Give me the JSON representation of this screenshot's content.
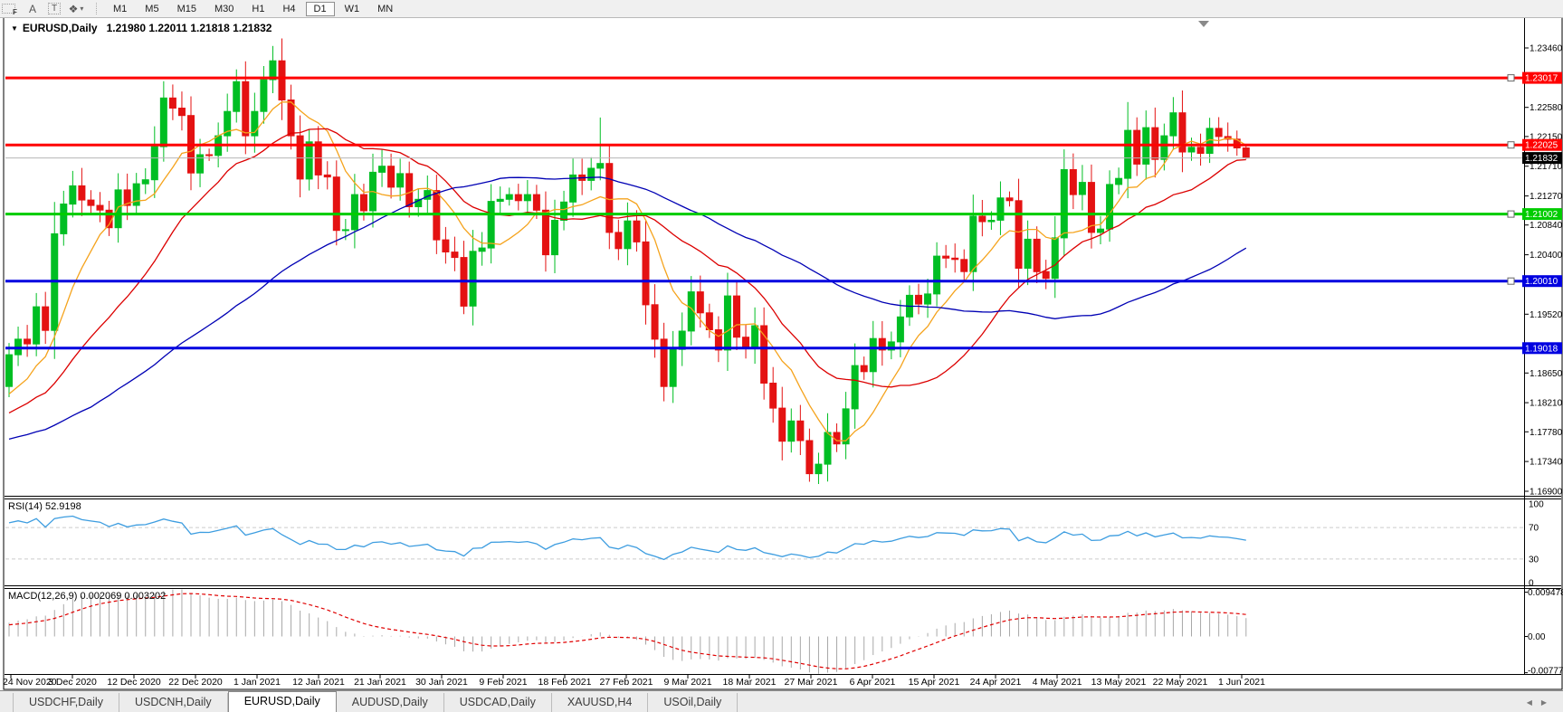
{
  "toolbar": {
    "tools": {
      "fib_glyph": "F",
      "text_glyph": "A",
      "label_glyph": "T",
      "shapes_glyph": "❖",
      "caret_glyph": "▾"
    },
    "timeframes": [
      "M1",
      "M5",
      "M15",
      "M30",
      "H1",
      "H4",
      "D1",
      "W1",
      "MN"
    ],
    "active_timeframe": "D1"
  },
  "chart": {
    "symbol_label": "EURUSD,Daily",
    "ohlc_text": "1.21980 1.22011 1.21818 1.21832",
    "caret_glyph": "▼"
  },
  "panels": {
    "rsi_label": "RSI(14) 52.9198",
    "macd_label": "MACD(12,26,9) 0.002069 0.003202"
  },
  "colors": {
    "bull": "#00be23",
    "bear": "#e41212",
    "sr_red": "#ff0000",
    "sr_green": "#00cc00",
    "sr_blue": "#0000e0",
    "ma_fast": "#f5a31c",
    "ma_mid": "#dc0000",
    "ma_slow": "#0000b4",
    "rsi_line": "#3d9de0",
    "rsi_level": "#cccccc",
    "macd_hist": "#a8a8a8",
    "macd_signal": "#e00000",
    "price_line": "#b4b4b4",
    "price_badge": "#000000",
    "shift_marker": "#8a8a8a"
  },
  "chart_data": {
    "type": "candlestick",
    "symbol": "EURUSD",
    "timeframe": "Daily",
    "last_candle": {
      "open": 1.2198,
      "high": 1.22011,
      "low": 1.21818,
      "close": 1.21832
    },
    "lead_in_closes": [
      1.1655,
      1.1672,
      1.166,
      1.1688,
      1.1702,
      1.1695,
      1.1718,
      1.1706,
      1.1724,
      1.174,
      1.1731,
      1.1752,
      1.1744,
      1.1762,
      1.1778,
      1.177,
      1.1789,
      1.1781,
      1.1762,
      1.1745,
      1.1758,
      1.1772,
      1.1766,
      1.1784,
      1.1798,
      1.179,
      1.1777,
      1.1768,
      1.1782,
      1.1795,
      1.1805,
      1.1798,
      1.1812,
      1.1825,
      1.1818,
      1.1808,
      1.182,
      1.1835,
      1.1828,
      1.1845
    ],
    "closes": [
      1.1892,
      1.1915,
      1.1908,
      1.1963,
      1.1928,
      1.2071,
      1.2115,
      1.2142,
      1.2121,
      1.2113,
      1.2106,
      1.208,
      1.2136,
      1.2113,
      1.2145,
      1.2151,
      1.22,
      1.2272,
      1.2257,
      1.2246,
      1.2161,
      1.2188,
      1.2187,
      1.2216,
      1.2252,
      1.2296,
      1.2216,
      1.2252,
      1.2299,
      1.2327,
      1.2269,
      1.2216,
      1.2152,
      1.2207,
      1.2158,
      1.2155,
      1.2076,
      1.2077,
      1.2129,
      1.2105,
      1.2162,
      1.2171,
      1.214,
      1.216,
      1.2111,
      1.2122,
      1.2135,
      1.2062,
      1.2044,
      1.2036,
      1.1964,
      1.2045,
      1.205,
      1.2119,
      1.2122,
      1.2129,
      1.212,
      1.2129,
      1.2106,
      1.204,
      1.2091,
      1.2118,
      1.2158,
      1.215,
      1.2168,
      1.2175,
      1.2073,
      1.2049,
      1.209,
      1.2059,
      1.1966,
      1.1915,
      1.1845,
      1.19,
      1.1927,
      1.1985,
      1.1954,
      1.1929,
      1.1899,
      1.1979,
      1.1918,
      1.1903,
      1.1935,
      1.185,
      1.1813,
      1.1764,
      1.1794,
      1.1765,
      1.1716,
      1.173,
      1.1777,
      1.176,
      1.1812,
      1.1876,
      1.1867,
      1.1916,
      1.1899,
      1.1911,
      1.1948,
      1.198,
      1.1967,
      1.1982,
      1.2038,
      1.2035,
      1.2033,
      1.2015,
      1.2097,
      1.2089,
      1.2091,
      1.2124,
      1.212,
      1.202,
      1.2063,
      1.2015,
      1.2005,
      1.2065,
      1.2166,
      1.2129,
      1.2147,
      1.2073,
      1.2078,
      1.2144,
      1.2153,
      1.2224,
      1.2174,
      1.2228,
      1.2181,
      1.2216,
      1.225,
      1.2192,
      1.2199,
      1.219,
      1.2227,
      1.2215,
      1.2211,
      1.2198,
      1.21832
    ],
    "wick_overrides": {
      "29": {
        "high": 1.2349
      },
      "50": {
        "low": 1.1952
      },
      "65": {
        "high": 1.2243
      },
      "88": {
        "low": 1.1704
      },
      "123": {
        "high": 1.2266
      }
    },
    "moving_averages": [
      {
        "period": 8,
        "color_key": "ma_fast"
      },
      {
        "period": 20,
        "color_key": "ma_mid"
      },
      {
        "period": 50,
        "color_key": "ma_slow"
      }
    ],
    "indicators": {
      "rsi": {
        "period": 14,
        "current": "52.9198",
        "levels": [
          70,
          30
        ],
        "range": [
          0,
          100
        ]
      },
      "macd": {
        "fast": 12,
        "slow": 26,
        "signal": 9,
        "current_main": "0.002069",
        "current_signal": "0.003202"
      }
    },
    "horizontal_lines": [
      {
        "price": 1.23017,
        "label": "1.23017",
        "color_key": "sr_red",
        "handle": true
      },
      {
        "price": 1.22025,
        "label": "1.22025",
        "color_key": "sr_red",
        "handle": true
      },
      {
        "price": 1.21002,
        "label": "1.21002",
        "color_key": "sr_green",
        "handle": true
      },
      {
        "price": 1.2001,
        "label": "1.20010",
        "color_key": "sr_blue",
        "handle": true
      },
      {
        "price": 1.19018,
        "label": "1.19018",
        "color_key": "sr_blue",
        "handle": false
      }
    ],
    "current_price": {
      "value": 1.21832,
      "label": "1.21832"
    },
    "y_ticks": [
      "1.23460",
      "1.22580",
      "1.22150",
      "1.21710",
      "1.21270",
      "1.20840",
      "1.20400",
      "1.19520",
      "1.18650",
      "1.18210",
      "1.17780",
      "1.17340",
      "1.16900"
    ],
    "x_labels": [
      "24 Nov 2020",
      "3 Dec 2020",
      "12 Dec 2020",
      "22 Dec 2020",
      "1 Jan 2021",
      "12 Jan 2021",
      "21 Jan 2021",
      "30 Jan 2021",
      "9 Feb 2021",
      "18 Feb 2021",
      "27 Feb 2021",
      "9 Mar 2021",
      "18 Mar 2021",
      "27 Mar 2021",
      "6 Apr 2021",
      "15 Apr 2021",
      "24 Apr 2021",
      "4 May 2021",
      "13 May 2021",
      "22 May 2021",
      "1 Jun 2021"
    ],
    "rsi_axis": [
      {
        "label": "100",
        "value": 100
      },
      {
        "label": "70",
        "value": 70
      },
      {
        "label": "30",
        "value": 30
      },
      {
        "label": "0",
        "value": 0
      }
    ],
    "macd_axis": [
      {
        "label": "0.009478",
        "value": 0.009478
      },
      {
        "label": "0.00",
        "value": 0
      },
      {
        "label": "-0.007778",
        "value": -0.007778
      }
    ]
  },
  "tabs": {
    "items": [
      {
        "label": "USDCHF,Daily",
        "active": false
      },
      {
        "label": "USDCNH,Daily",
        "active": false
      },
      {
        "label": "EURUSD,Daily",
        "active": true
      },
      {
        "label": "AUDUSD,Daily",
        "active": false
      },
      {
        "label": "USDCAD,Daily",
        "active": false
      },
      {
        "label": "XAUUSD,H4",
        "active": false
      },
      {
        "label": "USOil,Daily",
        "active": false
      }
    ],
    "scroll_left": "◀",
    "scroll_right": "▶"
  }
}
